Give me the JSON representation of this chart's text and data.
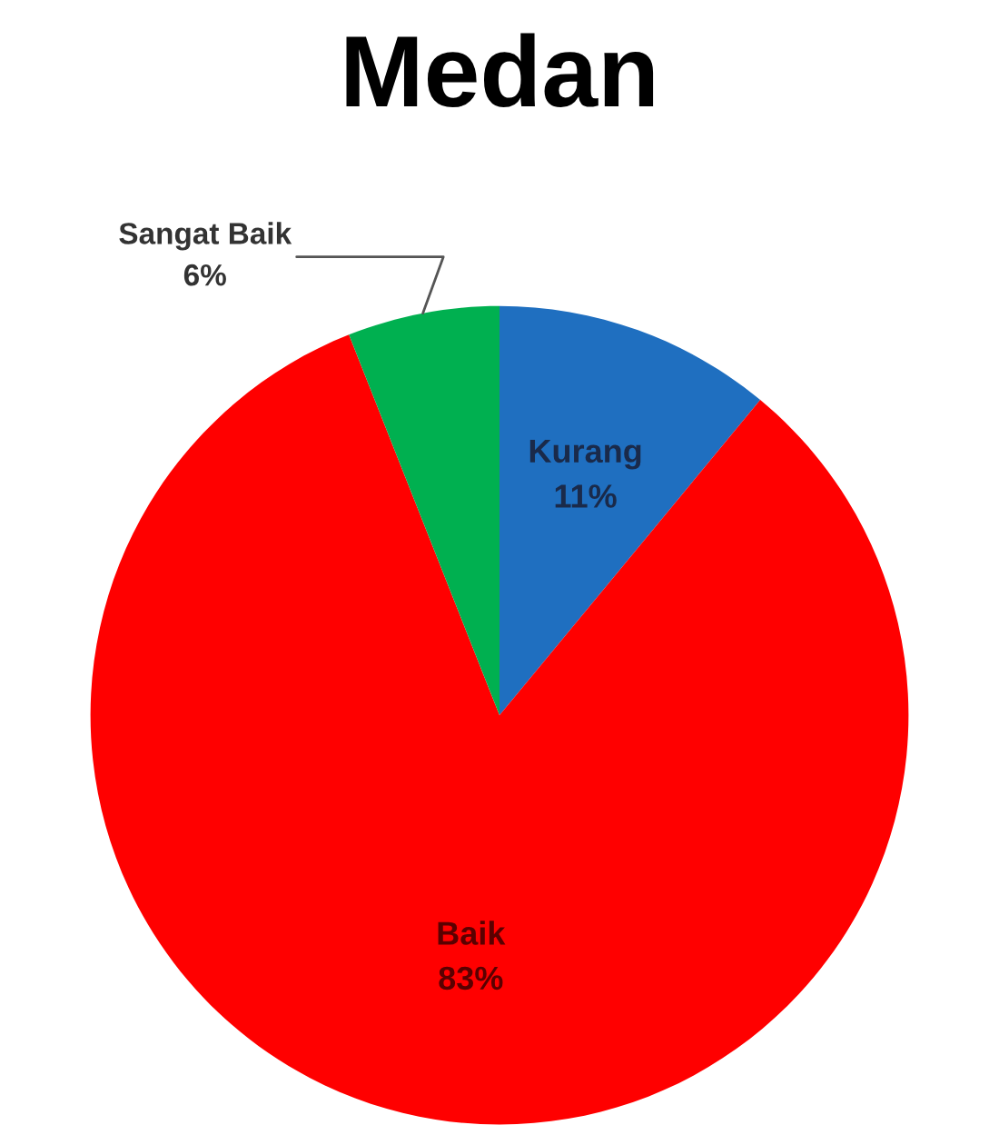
{
  "chart_data": {
    "type": "pie",
    "title": "Medan",
    "categories": [
      "Kurang",
      "Baik",
      "Sangat Baik"
    ],
    "values": [
      11,
      83,
      6
    ],
    "value_labels": [
      "11%",
      "83%",
      "6%"
    ],
    "colors": [
      "#1f6fc0",
      "#ff0000",
      "#00b050"
    ],
    "legend": false
  }
}
